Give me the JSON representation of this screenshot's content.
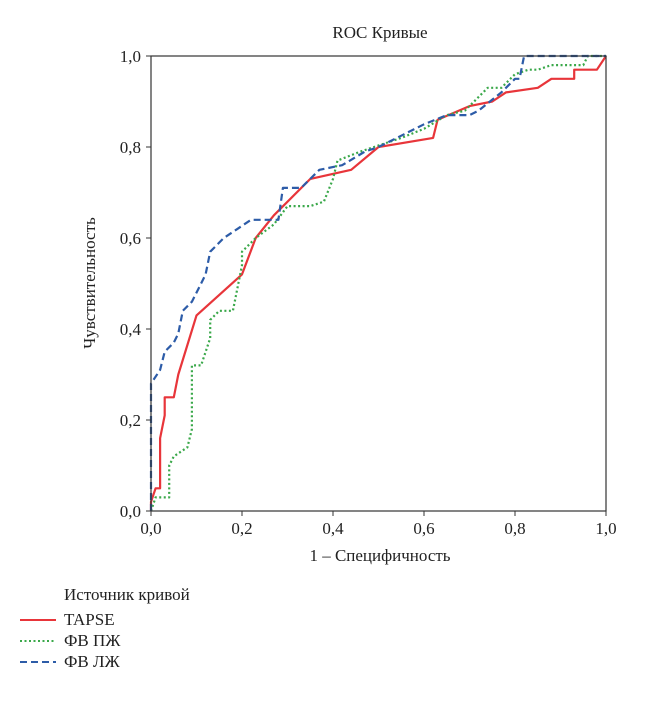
{
  "chart_data": {
    "type": "line",
    "title": "ROC Кривые",
    "xlabel": "1 – Специфичность",
    "ylabel": "Чувствительность",
    "xlim": [
      0,
      1
    ],
    "ylim": [
      0,
      1
    ],
    "x_ticks": [
      "0,0",
      "0,2",
      "0,4",
      "0,6",
      "0,8",
      "1,0"
    ],
    "y_ticks": [
      "0,0",
      "0,2",
      "0,4",
      "0,6",
      "0,8",
      "1,0"
    ],
    "grid": false,
    "legend_title": "Источник кривой",
    "legend_position": "bottom-left",
    "series": [
      {
        "name": "TAPSE",
        "color": "#e8353a",
        "style": "solid",
        "points": [
          [
            0,
            0
          ],
          [
            0,
            0.02
          ],
          [
            0.01,
            0.05
          ],
          [
            0.02,
            0.05
          ],
          [
            0.02,
            0.16
          ],
          [
            0.03,
            0.21
          ],
          [
            0.03,
            0.25
          ],
          [
            0.05,
            0.25
          ],
          [
            0.06,
            0.3
          ],
          [
            0.1,
            0.43
          ],
          [
            0.2,
            0.52
          ],
          [
            0.23,
            0.6
          ],
          [
            0.27,
            0.65
          ],
          [
            0.35,
            0.73
          ],
          [
            0.44,
            0.75
          ],
          [
            0.5,
            0.8
          ],
          [
            0.62,
            0.82
          ],
          [
            0.63,
            0.86
          ],
          [
            0.7,
            0.89
          ],
          [
            0.75,
            0.9
          ],
          [
            0.78,
            0.92
          ],
          [
            0.85,
            0.93
          ],
          [
            0.88,
            0.95
          ],
          [
            0.93,
            0.95
          ],
          [
            0.93,
            0.97
          ],
          [
            0.98,
            0.97
          ],
          [
            1,
            1
          ]
        ]
      },
      {
        "name": "ФВ ПЖ",
        "color": "#3aa84a",
        "style": "dotted",
        "points": [
          [
            0,
            0
          ],
          [
            0.01,
            0.03
          ],
          [
            0.04,
            0.03
          ],
          [
            0.04,
            0.1
          ],
          [
            0.05,
            0.12
          ],
          [
            0.08,
            0.14
          ],
          [
            0.09,
            0.18
          ],
          [
            0.09,
            0.32
          ],
          [
            0.11,
            0.32
          ],
          [
            0.13,
            0.38
          ],
          [
            0.13,
            0.42
          ],
          [
            0.15,
            0.44
          ],
          [
            0.18,
            0.44
          ],
          [
            0.2,
            0.54
          ],
          [
            0.2,
            0.57
          ],
          [
            0.23,
            0.6
          ],
          [
            0.27,
            0.63
          ],
          [
            0.3,
            0.67
          ],
          [
            0.35,
            0.67
          ],
          [
            0.38,
            0.68
          ],
          [
            0.4,
            0.73
          ],
          [
            0.41,
            0.77
          ],
          [
            0.46,
            0.79
          ],
          [
            0.55,
            0.82
          ],
          [
            0.6,
            0.84
          ],
          [
            0.65,
            0.87
          ],
          [
            0.69,
            0.88
          ],
          [
            0.71,
            0.9
          ],
          [
            0.74,
            0.93
          ],
          [
            0.77,
            0.93
          ],
          [
            0.8,
            0.96
          ],
          [
            0.83,
            0.97
          ],
          [
            0.85,
            0.97
          ],
          [
            0.88,
            0.98
          ],
          [
            0.95,
            0.98
          ],
          [
            0.96,
            1
          ],
          [
            1,
            1
          ]
        ]
      },
      {
        "name": "ФВ ЛЖ",
        "color": "#2d5ca8",
        "style": "dashed",
        "points": [
          [
            0,
            0
          ],
          [
            0,
            0.28
          ],
          [
            0.02,
            0.31
          ],
          [
            0.03,
            0.35
          ],
          [
            0.05,
            0.37
          ],
          [
            0.06,
            0.39
          ],
          [
            0.07,
            0.44
          ],
          [
            0.09,
            0.46
          ],
          [
            0.11,
            0.5
          ],
          [
            0.12,
            0.52
          ],
          [
            0.13,
            0.57
          ],
          [
            0.16,
            0.6
          ],
          [
            0.19,
            0.62
          ],
          [
            0.22,
            0.64
          ],
          [
            0.28,
            0.64
          ],
          [
            0.29,
            0.71
          ],
          [
            0.33,
            0.71
          ],
          [
            0.37,
            0.75
          ],
          [
            0.42,
            0.76
          ],
          [
            0.47,
            0.79
          ],
          [
            0.5,
            0.8
          ],
          [
            0.56,
            0.83
          ],
          [
            0.6,
            0.85
          ],
          [
            0.65,
            0.87
          ],
          [
            0.7,
            0.87
          ],
          [
            0.72,
            0.88
          ],
          [
            0.77,
            0.92
          ],
          [
            0.8,
            0.95
          ],
          [
            0.81,
            0.95
          ],
          [
            0.82,
            1
          ],
          [
            1,
            1
          ]
        ]
      }
    ]
  }
}
